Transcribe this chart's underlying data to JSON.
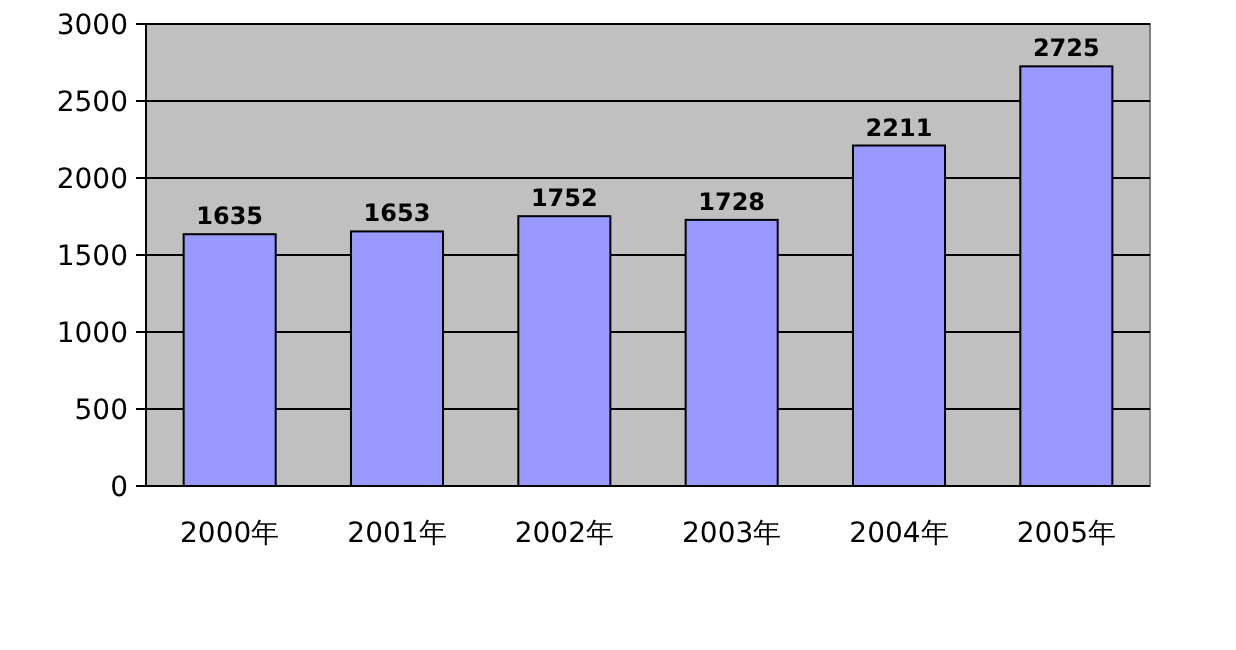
{
  "chart_data": {
    "type": "bar",
    "categories": [
      "2000年",
      "2001年",
      "2002年",
      "2003年",
      "2004年",
      "2005年"
    ],
    "values": [
      1635,
      1653,
      1752,
      1728,
      2211,
      2725
    ],
    "color": "#9999ff",
    "ylim": [
      0,
      3000
    ],
    "yticks": [
      0,
      500,
      1000,
      1500,
      2000,
      2500,
      3000
    ],
    "grid": "y",
    "data_labels": true
  }
}
